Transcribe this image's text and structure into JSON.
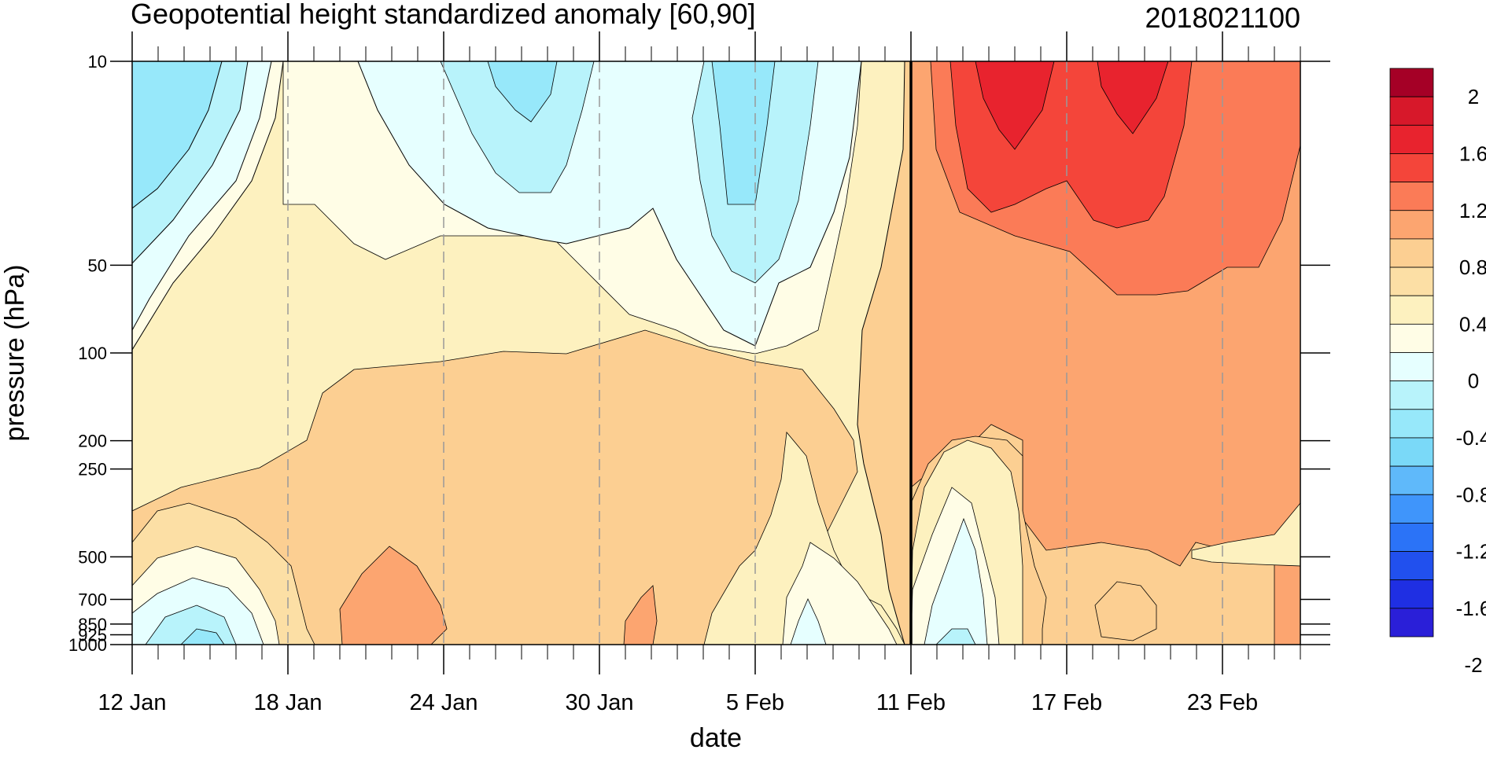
{
  "chart_data": {
    "type": "heatmap",
    "subtype": "filled-contour",
    "title": "Geopotential height standardized anomaly [60,90]",
    "title_right": "2018021100",
    "xlabel": "date",
    "ylabel": "pressure (hPa)",
    "x_tick_labels": [
      "12 Jan",
      "18 Jan",
      "24 Jan",
      "30 Jan",
      "5 Feb",
      "11 Feb",
      "17 Feb",
      "23 Feb"
    ],
    "x_range": [
      "2018-01-12",
      "2018-02-26"
    ],
    "y_scale": "log",
    "y_range": [
      1000,
      10
    ],
    "y_ticks": [
      10,
      50,
      100,
      200,
      250,
      500,
      700,
      850,
      925,
      1000
    ],
    "y_tick_labels": [
      "10",
      "50",
      "100",
      "200",
      "250",
      "500",
      "700",
      "850",
      "925",
      "1000"
    ],
    "analysis_date_line": "11 Feb",
    "gridlines": "dashed vertical at labeled dates",
    "colorbar": {
      "position": "right",
      "labels": [
        "2",
        "1.6",
        "1.2",
        "0.8",
        "0.4",
        "0",
        "-0.4",
        "-0.8",
        "-1.2",
        "-1.6",
        "-2"
      ],
      "colors_top_to_bottom": [
        "#a50026",
        "#d7182a",
        "#e8232e",
        "#f4453a",
        "#fb7b57",
        "#fca570",
        "#fccf92",
        "#fcdfa5",
        "#fdf1bf",
        "#fffde6",
        "#e6ffff",
        "#b8f3fb",
        "#97e8fa",
        "#7ad9f8",
        "#5fb9fa",
        "#3f95fb",
        "#2b73f7",
        "#2150ee",
        "#1f2fe3",
        "#2a1fd8"
      ]
    }
  }
}
